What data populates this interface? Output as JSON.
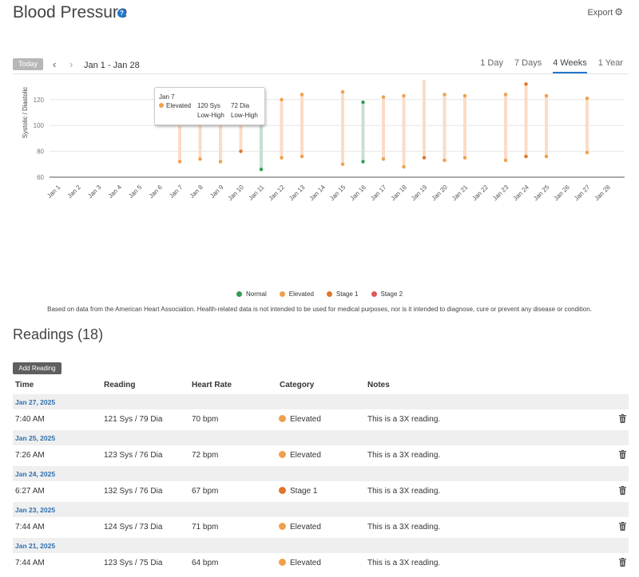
{
  "header": {
    "title": "Blood Pressure",
    "help_icon": "question-circle-icon",
    "export_label": "Export",
    "export_icon": "gear-icon"
  },
  "toolbar": {
    "today_label": "Today",
    "prev_icon": "chevron-left-icon",
    "next_icon": "chevron-right-icon",
    "date_range": "Jan 1 - Jan 28",
    "ranges": [
      {
        "label": "1 Day",
        "active": false
      },
      {
        "label": "7 Days",
        "active": false
      },
      {
        "label": "4 Weeks",
        "active": true
      },
      {
        "label": "1 Year",
        "active": false
      }
    ]
  },
  "colors": {
    "normal": "#2e9e4f",
    "elevated": "#f0a04b",
    "stage1": "#e0752a",
    "stage2": "#e05555",
    "accent": "#2277c9"
  },
  "chart_data": {
    "type": "range-bar",
    "ylabel": "Systolic / Diastolic",
    "ylim": [
      60,
      160
    ],
    "yticks": [
      60,
      80,
      100,
      120,
      140,
      160
    ],
    "categories": [
      "Jan 1",
      "Jan 2",
      "Jan 3",
      "Jan 4",
      "Jan 5",
      "Jan 6",
      "Jan 7",
      "Jan 8",
      "Jan 9",
      "Jan 10",
      "Jan 11",
      "Jan 12",
      "Jan 13",
      "Jan 14",
      "Jan 15",
      "Jan 16",
      "Jan 17",
      "Jan 18",
      "Jan 19",
      "Jan 20",
      "Jan 21",
      "Jan 22",
      "Jan 23",
      "Jan 24",
      "Jan 25",
      "Jan 26",
      "Jan 27",
      "Jan 28"
    ],
    "series": [
      {
        "date": "Jan 7",
        "sys": 120,
        "dia": 72,
        "category": "elevated"
      },
      {
        "date": "Jan 8",
        "sys": 120,
        "dia": 74,
        "category": "elevated"
      },
      {
        "date": "Jan 9",
        "sys": 122,
        "dia": 72,
        "category": "elevated"
      },
      {
        "date": "Jan 10",
        "sys": 118,
        "dia": 80,
        "category": "stage1"
      },
      {
        "date": "Jan 11",
        "sys": 111,
        "dia": 66,
        "category": "normal"
      },
      {
        "date": "Jan 12",
        "sys": 120,
        "dia": 75,
        "category": "elevated"
      },
      {
        "date": "Jan 13",
        "sys": 124,
        "dia": 76,
        "category": "elevated"
      },
      {
        "date": "Jan 15",
        "sys": 126,
        "dia": 70,
        "category": "elevated"
      },
      {
        "date": "Jan 16",
        "sys": 118,
        "dia": 72,
        "category": "normal"
      },
      {
        "date": "Jan 17",
        "sys": 122,
        "dia": 74,
        "category": "elevated"
      },
      {
        "date": "Jan 18",
        "sys": 123,
        "dia": 68,
        "category": "elevated"
      },
      {
        "date": "Jan 19",
        "sys": 139,
        "dia": 75,
        "category": "stage1"
      },
      {
        "date": "Jan 20",
        "sys": 124,
        "dia": 73,
        "category": "elevated"
      },
      {
        "date": "Jan 21",
        "sys": 123,
        "dia": 75,
        "category": "elevated"
      },
      {
        "date": "Jan 23",
        "sys": 124,
        "dia": 73,
        "category": "elevated"
      },
      {
        "date": "Jan 24",
        "sys": 132,
        "dia": 76,
        "category": "stage1"
      },
      {
        "date": "Jan 25",
        "sys": 123,
        "dia": 76,
        "category": "elevated"
      },
      {
        "date": "Jan 27",
        "sys": 121,
        "dia": 79,
        "category": "elevated"
      }
    ],
    "legend": [
      {
        "label": "Normal",
        "category": "normal"
      },
      {
        "label": "Elevated",
        "category": "elevated"
      },
      {
        "label": "Stage 1",
        "category": "stage1"
      },
      {
        "label": "Stage 2",
        "category": "stage2"
      }
    ]
  },
  "tooltip": {
    "date": "Jan 7",
    "category": "Elevated",
    "sys": "120 Sys",
    "dia": "72 Dia",
    "sys_range": "Low-High",
    "dia_range": "Low-High"
  },
  "disclaimer": "Based on data from the American Heart Association. Health-related data is not intended to be used for medical purposes, nor is it intended to diagnose, cure or prevent any disease or condition.",
  "readings": {
    "title": "Readings (18)",
    "add_label": "Add Reading",
    "columns": [
      "Time",
      "Reading",
      "Heart Rate",
      "Category",
      "Notes"
    ],
    "groups": [
      {
        "date": "Jan 27, 2025",
        "time": "7:40 AM",
        "reading": "121 Sys / 79 Dia",
        "hr": "70 bpm",
        "category": "Elevated",
        "cat_key": "elevated",
        "notes": "This is a 3X reading."
      },
      {
        "date": "Jan 25, 2025",
        "time": "7:26 AM",
        "reading": "123 Sys / 76 Dia",
        "hr": "72 bpm",
        "category": "Elevated",
        "cat_key": "elevated",
        "notes": "This is a 3X reading."
      },
      {
        "date": "Jan 24, 2025",
        "time": "6:27 AM",
        "reading": "132 Sys / 76 Dia",
        "hr": "67 bpm",
        "category": "Stage 1",
        "cat_key": "stage1",
        "notes": "This is a 3X reading."
      },
      {
        "date": "Jan 23, 2025",
        "time": "7:44 AM",
        "reading": "124 Sys / 73 Dia",
        "hr": "71 bpm",
        "category": "Elevated",
        "cat_key": "elevated",
        "notes": "This is a 3X reading."
      },
      {
        "date": "Jan 21, 2025",
        "time": "7:44 AM",
        "reading": "123 Sys / 75 Dia",
        "hr": "64 bpm",
        "category": "Elevated",
        "cat_key": "elevated",
        "notes": "This is a 3X reading."
      }
    ]
  }
}
